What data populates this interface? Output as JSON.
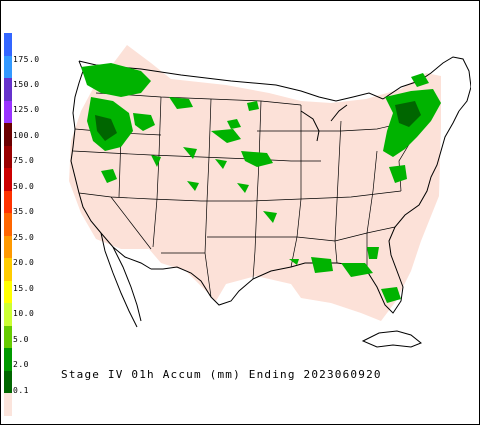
{
  "title": "Stage IV 01h Accum (mm) Ending 2023060920",
  "legend": {
    "ticks": [
      "175.0",
      "150.0",
      "125.0",
      "100.0",
      "75.0",
      "50.0",
      "35.0",
      "25.0",
      "20.0",
      "15.0",
      "10.0",
      "5.0",
      "2.0",
      "0.1"
    ],
    "colors": [
      "#3366ff",
      "#3399ff",
      "#6633cc",
      "#9933ff",
      "#6b0000",
      "#990000",
      "#cc0000",
      "#ff3300",
      "#ff6600",
      "#ff9900",
      "#ffcc00",
      "#ffff00",
      "#ccff33",
      "#66cc00",
      "#009900",
      "#006600",
      "#fbe4dc"
    ]
  },
  "colors": {
    "background_area": "#fce1d8",
    "border": "#000000",
    "precip_light": "#00b300",
    "precip_dark": "#006600"
  }
}
